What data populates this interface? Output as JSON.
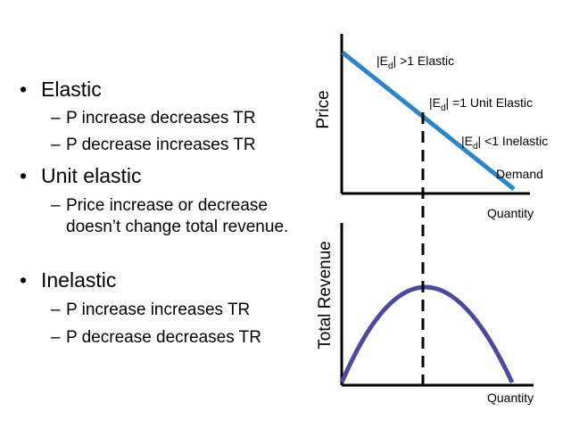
{
  "bullets": [
    {
      "label": "Elastic",
      "subs": [
        "P increase decreases TR",
        "P decrease increases TR"
      ]
    },
    {
      "label": "Unit elastic",
      "subs": [
        "Price increase or decrease doesn’t change total revenue."
      ]
    },
    {
      "label": "Inelastic",
      "subs": [
        "P increase increases TR",
        "P decrease decreases TR"
      ]
    }
  ],
  "top_chart": {
    "ylabel": "Price",
    "xlabel": "Quantity",
    "demand_label": "Demand",
    "line_color": "#2a86c6",
    "elastic": {
      "pre": "|E",
      "sub": "d",
      "post": "| >1 Elastic"
    },
    "unit": {
      "pre": "|E",
      "sub": "d",
      "post": "| =1 Unit Elastic"
    },
    "inelastic": {
      "pre": "|E",
      "sub": "d",
      "post": "| <1 Inelastic"
    }
  },
  "bottom_chart": {
    "ylabel": "Total Revenue",
    "xlabel": "Quantity",
    "curve_color": "#4a4aa0"
  }
}
